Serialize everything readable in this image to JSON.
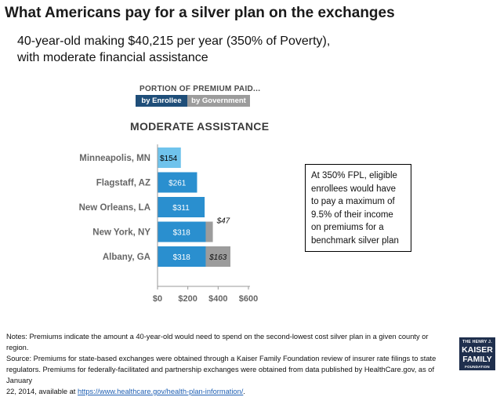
{
  "title": "What Americans pay for a silver plan on the exchanges",
  "subtitle_line1": "40-year-old making $40,215 per year (350% of Poverty),",
  "subtitle_line2": "with moderate financial assistance",
  "legend": {
    "title": "PORTION OF PREMIUM PAID...",
    "enrollee": "by Enrollee",
    "government": "by Government"
  },
  "colors": {
    "enrollee": "#2a8fcf",
    "enrollee_light": "#6fc3ec",
    "government": "#9c9c9c",
    "legend_enrollee": "#1f4e79",
    "legend_government": "#9c9c9c"
  },
  "chart_heading": "MODERATE ASSISTANCE",
  "chart_data": {
    "type": "bar",
    "orientation": "horizontal",
    "stacked": true,
    "categories": [
      "Minneapolis, MN",
      "Flagstaff, AZ",
      "New Orleans, LA",
      "New York, NY",
      "Albany, GA"
    ],
    "series": [
      {
        "name": "by Enrollee",
        "values": [
          154,
          261,
          311,
          318,
          318
        ],
        "labels": [
          "$154",
          "$261",
          "$311",
          "$318",
          "$318"
        ]
      },
      {
        "name": "by Government",
        "values": [
          0,
          0,
          0,
          47,
          163
        ],
        "labels": [
          "",
          "",
          "",
          "$47",
          "$163"
        ]
      }
    ],
    "xlim": [
      0,
      600
    ],
    "xticks": [
      0,
      200,
      400,
      600
    ],
    "xtick_labels": [
      "$0",
      "$200",
      "$400",
      "$600"
    ],
    "grid": false
  },
  "callout": "At 350% FPL, eligible enrollees would have to pay a maximum of 9.5% of their income on premiums for a benchmark silver plan",
  "notes": {
    "line1": "Notes: Premiums indicate the amount a 40-year-old would need to spend on the second-lowest cost silver plan in a given county or region.",
    "line2": "Source: Premiums for state-based exchanges were obtained through a Kaiser Family Foundation review of insurer rate filings to state",
    "line3": "regulators. Premiums for federally-facilitated and partnership exchanges were obtained from data published by HealthCare.gov, as of January",
    "line4_prefix": "22, 2014, available at ",
    "link": "https://www.healthcare.gov/health-plan-information/",
    "line4_suffix": "."
  },
  "logo": {
    "line1": "THE HENRY J.",
    "line2a": "KAISER",
    "line2b": "FAMILY",
    "line3": "FOUNDATION"
  }
}
